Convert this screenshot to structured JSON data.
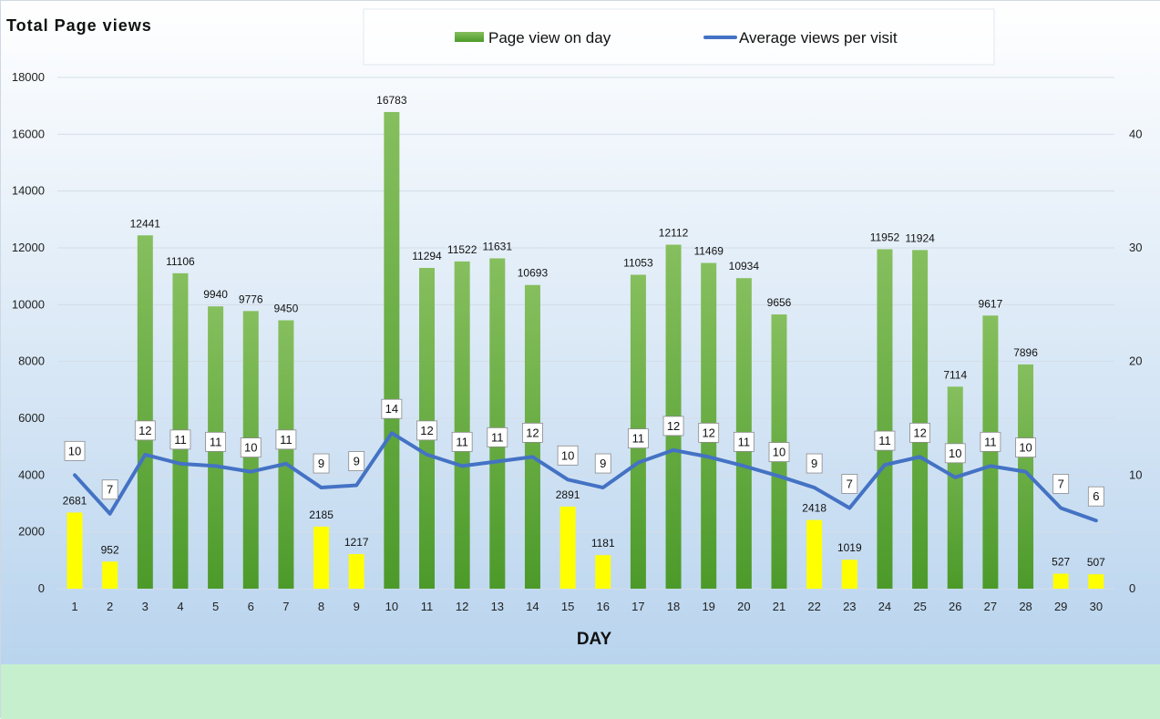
{
  "chart_data": {
    "type": "bar+line",
    "title": "Total Page views",
    "xlabel": "DAY",
    "categories": [
      "1",
      "2",
      "3",
      "4",
      "5",
      "6",
      "7",
      "8",
      "9",
      "10",
      "11",
      "12",
      "13",
      "14",
      "15",
      "16",
      "17",
      "18",
      "19",
      "20",
      "21",
      "22",
      "23",
      "24",
      "25",
      "26",
      "27",
      "28",
      "29",
      "30"
    ],
    "series": [
      {
        "name": "Page view on day",
        "kind": "bar",
        "axis": "left",
        "values": [
          2681,
          952,
          12441,
          11106,
          9940,
          9776,
          9450,
          2185,
          1217,
          16783,
          11294,
          11522,
          11631,
          10693,
          2891,
          1181,
          11053,
          12112,
          11469,
          10934,
          9656,
          2418,
          1019,
          11952,
          11924,
          7114,
          9617,
          7896,
          527,
          507
        ],
        "highlight_days": [
          "1",
          "2",
          "8",
          "9",
          "15",
          "16",
          "22",
          "23",
          "29",
          "30"
        ]
      },
      {
        "name": "Average views per visit",
        "kind": "line",
        "axis": "right",
        "values": [
          10,
          7,
          12,
          11,
          11,
          10,
          11,
          9,
          9,
          14,
          12,
          11,
          11,
          12,
          10,
          9,
          11,
          12,
          12,
          11,
          10,
          9,
          7,
          11,
          12,
          10,
          11,
          10,
          7,
          6
        ],
        "plot_values": [
          10,
          6.6,
          11.8,
          11,
          10.8,
          10.3,
          11,
          8.9,
          9.1,
          13.7,
          11.8,
          10.8,
          11.2,
          11.6,
          9.6,
          8.9,
          11.1,
          12.2,
          11.6,
          10.8,
          9.9,
          8.9,
          7.1,
          10.9,
          11.6,
          9.8,
          10.8,
          10.3,
          7.1,
          6
        ]
      }
    ],
    "y_left": {
      "ticks": [
        0,
        2000,
        4000,
        6000,
        8000,
        10000,
        12000,
        14000,
        16000,
        18000
      ],
      "range": [
        0,
        18000
      ]
    },
    "y_right": {
      "ticks": [
        0,
        10,
        20,
        30,
        40
      ],
      "range": [
        0,
        45
      ]
    },
    "legend_position": "top-center",
    "grid": true,
    "colors": {
      "bar_green_light": "#86bf5e",
      "bar_green_dark": "#4c9a2a",
      "bar_yellow": "#ffff00",
      "line": "#4472c4",
      "bg_top": "#ffffff",
      "bg_bottom": "#b9d4ee",
      "bottom_band": "#c6efce"
    }
  }
}
